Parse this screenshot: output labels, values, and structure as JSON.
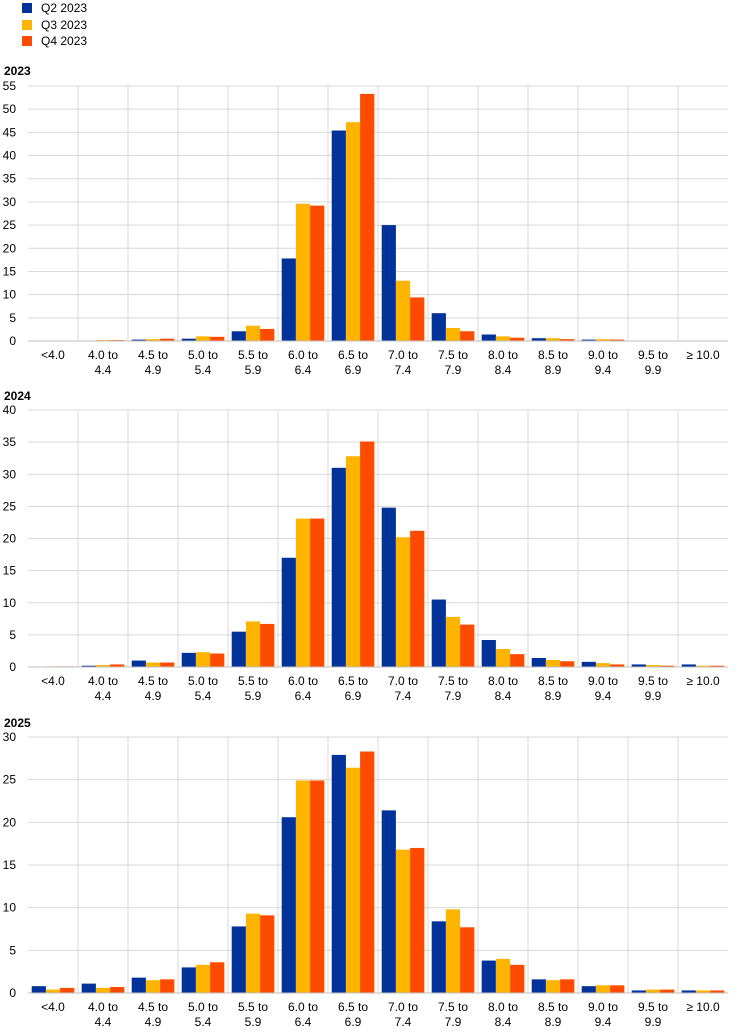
{
  "legend": [
    {
      "name": "Q2 2023",
      "color": "#003299"
    },
    {
      "name": "Q3 2023",
      "color": "#FFB400"
    },
    {
      "name": "Q4 2023",
      "color": "#FF4B00"
    }
  ],
  "chart_data": [
    {
      "type": "bar",
      "title": "2023",
      "categories": [
        [
          "<4.0"
        ],
        [
          "4.0 to",
          "4.4"
        ],
        [
          "4.5 to",
          "4.9"
        ],
        [
          "5.0 to",
          "5.4"
        ],
        [
          "5.5 to",
          "5.9"
        ],
        [
          "6.0 to",
          "6.4"
        ],
        [
          "6.5 to",
          "6.9"
        ],
        [
          "7.0 to",
          "7.4"
        ],
        [
          "7.5 to",
          "7.9"
        ],
        [
          "8.0 to",
          "8.4"
        ],
        [
          "8.5 to",
          "8.9"
        ],
        [
          "9.0 to",
          "9.4"
        ],
        [
          "9.5 to",
          "9.9"
        ],
        [
          "≥ 10.0"
        ]
      ],
      "ylim": [
        0,
        55
      ],
      "yticks": [
        0,
        5,
        10,
        15,
        20,
        25,
        30,
        35,
        40,
        45,
        50,
        55
      ],
      "grid": true,
      "series": [
        {
          "name": "Q2 2023",
          "color": "#003299",
          "values": [
            0.0,
            0.1,
            0.3,
            0.5,
            2.1,
            17.8,
            45.4,
            25.0,
            6.0,
            1.4,
            0.6,
            0.3,
            0.1,
            0.0
          ]
        },
        {
          "name": "Q3 2023",
          "color": "#FFB400",
          "values": [
            0.0,
            0.2,
            0.4,
            1.0,
            3.3,
            29.6,
            47.2,
            13.0,
            2.8,
            1.0,
            0.6,
            0.4,
            0.1,
            0.1
          ]
        },
        {
          "name": "Q4 2023",
          "color": "#FF4B00",
          "values": [
            0.1,
            0.2,
            0.5,
            0.9,
            2.6,
            29.2,
            53.3,
            9.4,
            2.1,
            0.7,
            0.4,
            0.3,
            0.1,
            0.1
          ]
        }
      ]
    },
    {
      "type": "bar",
      "title": "2024",
      "categories": [
        [
          "<4.0"
        ],
        [
          "4.0 to",
          "4.4"
        ],
        [
          "4.5 to",
          "4.9"
        ],
        [
          "5.0 to",
          "5.4"
        ],
        [
          "5.5 to",
          "5.9"
        ],
        [
          "6.0 to",
          "6.4"
        ],
        [
          "6.5 to",
          "6.9"
        ],
        [
          "7.0 to",
          "7.4"
        ],
        [
          "7.5 to",
          "7.9"
        ],
        [
          "8.0 to",
          "8.4"
        ],
        [
          "8.5 to",
          "8.9"
        ],
        [
          "9.0 to",
          "9.4"
        ],
        [
          "9.5 to",
          "9.9"
        ],
        [
          "≥ 10.0"
        ]
      ],
      "ylim": [
        0,
        40
      ],
      "yticks": [
        0,
        5,
        10,
        15,
        20,
        25,
        30,
        35,
        40
      ],
      "grid": true,
      "series": [
        {
          "name": "Q2 2023",
          "color": "#003299",
          "values": [
            0.0,
            0.2,
            1.0,
            2.2,
            5.5,
            17.0,
            31.0,
            24.8,
            10.5,
            4.2,
            1.4,
            0.8,
            0.4,
            0.4
          ]
        },
        {
          "name": "Q3 2023",
          "color": "#FFB400",
          "values": [
            0.1,
            0.3,
            0.7,
            2.3,
            7.1,
            23.1,
            32.8,
            20.2,
            7.8,
            2.8,
            1.1,
            0.6,
            0.3,
            0.2
          ]
        },
        {
          "name": "Q4 2023",
          "color": "#FF4B00",
          "values": [
            0.1,
            0.4,
            0.7,
            2.1,
            6.7,
            23.1,
            35.1,
            21.2,
            6.6,
            2.0,
            0.9,
            0.4,
            0.2,
            0.2
          ]
        }
      ]
    },
    {
      "type": "bar",
      "title": "2025",
      "categories": [
        [
          "<4.0"
        ],
        [
          "4.0 to",
          "4.4"
        ],
        [
          "4.5 to",
          "4.9"
        ],
        [
          "5.0 to",
          "5.4"
        ],
        [
          "5.5 to",
          "5.9"
        ],
        [
          "6.0 to",
          "6.4"
        ],
        [
          "6.5 to",
          "6.9"
        ],
        [
          "7.0 to",
          "7.4"
        ],
        [
          "7.5 to",
          "7.9"
        ],
        [
          "8.0 to",
          "8.4"
        ],
        [
          "8.5 to",
          "8.9"
        ],
        [
          "9.0 to",
          "9.4"
        ],
        [
          "9.5 to",
          "9.9"
        ],
        [
          "≥ 10.0"
        ]
      ],
      "ylim": [
        0,
        30
      ],
      "yticks": [
        0,
        5,
        10,
        15,
        20,
        25,
        30
      ],
      "grid": true,
      "series": [
        {
          "name": "Q2 2023",
          "color": "#003299",
          "values": [
            0.8,
            1.1,
            1.8,
            3.0,
            7.8,
            20.6,
            27.9,
            21.4,
            8.4,
            3.8,
            1.6,
            0.8,
            0.3,
            0.3
          ]
        },
        {
          "name": "Q3 2023",
          "color": "#FFB400",
          "values": [
            0.4,
            0.6,
            1.5,
            3.3,
            9.3,
            24.9,
            26.4,
            16.8,
            9.8,
            4.0,
            1.5,
            0.9,
            0.4,
            0.3
          ]
        },
        {
          "name": "Q4 2023",
          "color": "#FF4B00",
          "values": [
            0.6,
            0.7,
            1.6,
            3.6,
            9.1,
            24.9,
            28.3,
            17.0,
            7.7,
            3.3,
            1.6,
            0.9,
            0.4,
            0.3
          ]
        }
      ]
    }
  ]
}
